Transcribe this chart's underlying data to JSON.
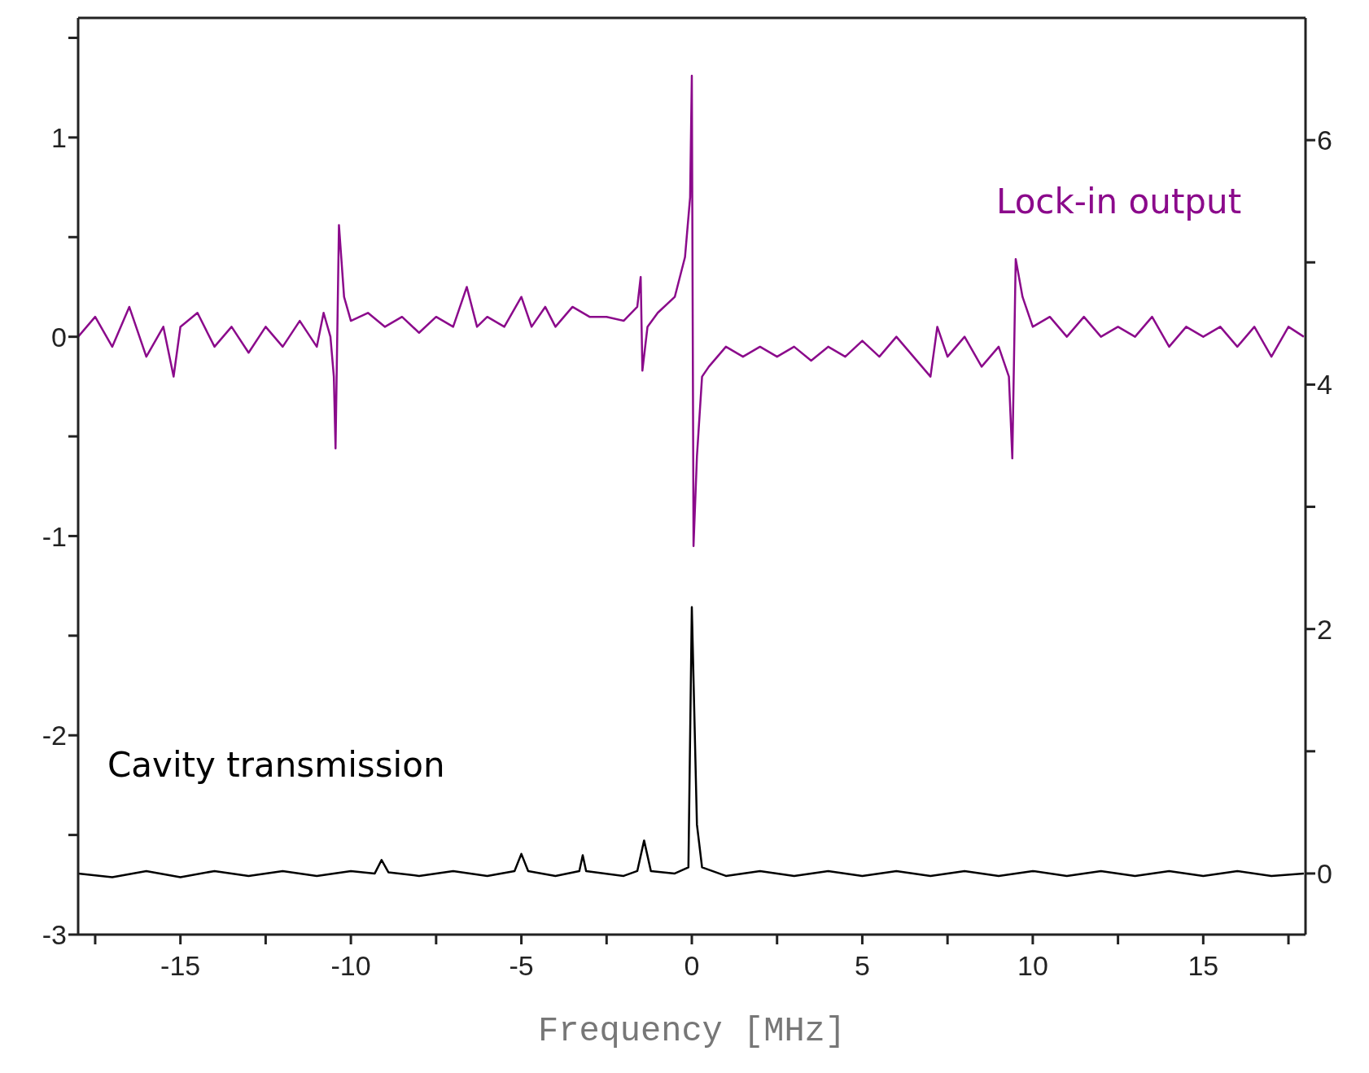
{
  "chart_data": {
    "type": "line",
    "xlabel": "Frequency [MHz]",
    "xlim": [
      -18,
      18
    ],
    "xticks": [
      {
        "value": -17.5,
        "label": null
      },
      -15,
      {
        "value": -12.5,
        "label": null
      },
      -10,
      {
        "value": -7.5,
        "label": null
      },
      -5,
      {
        "value": -2.5,
        "label": null
      },
      0,
      {
        "value": 2.5,
        "label": null
      },
      5,
      {
        "value": 7.5,
        "label": null
      },
      10,
      {
        "value": 12.5,
        "label": null
      },
      15,
      {
        "value": 17.5,
        "label": null
      }
    ],
    "ylim": [
      -3,
      1.6
    ],
    "yticks": [
      -3,
      {
        "value": -2.5,
        "label": null
      },
      -2,
      {
        "value": -1.5,
        "label": null
      },
      -1,
      {
        "value": -0.5,
        "label": null
      },
      0,
      {
        "value": 0.5,
        "label": null
      },
      1,
      {
        "value": 1.5,
        "label": null
      }
    ],
    "y2lim": [
      -0.5,
      7
    ],
    "y2ticks": [
      0,
      {
        "value": 1,
        "label": null
      },
      2,
      {
        "value": 3,
        "label": null
      },
      4,
      {
        "value": 5,
        "label": null
      },
      6
    ],
    "grid": false,
    "legend": false,
    "marker": "none",
    "line_style": "solid",
    "series": [
      {
        "name": "Lock-in output",
        "color": "#8b0a8b",
        "axis": "y",
        "x": [
          -18,
          -17.5,
          -17,
          -16.5,
          -16,
          -15.5,
          -15.2,
          -15,
          -14.5,
          -14,
          -13.5,
          -13,
          -12.5,
          -12,
          -11.5,
          -11,
          -10.8,
          -10.6,
          -10.5,
          -10.45,
          -10.35,
          -10.2,
          -10,
          -9.5,
          -9,
          -8.5,
          -8,
          -7.5,
          -7,
          -6.6,
          -6.3,
          -6,
          -5.5,
          -5,
          -4.7,
          -4.3,
          -4,
          -3.5,
          -3,
          -2.5,
          -2,
          -1.6,
          -1.5,
          -1.45,
          -1.3,
          -1,
          -0.5,
          -0.2,
          -0.05,
          0,
          0.05,
          0.15,
          0.3,
          0.5,
          1,
          1.5,
          2,
          2.5,
          3,
          3.5,
          4,
          4.5,
          5,
          5.5,
          6,
          6.5,
          7,
          7.2,
          7.5,
          8,
          8.5,
          9,
          9.3,
          9.4,
          9.5,
          9.7,
          10,
          10.5,
          11,
          11.5,
          12,
          12.5,
          13,
          13.5,
          14,
          14.5,
          15,
          15.5,
          16,
          16.5,
          17,
          17.5,
          17.95
        ],
        "values": [
          0,
          0.1,
          -0.05,
          0.15,
          -0.1,
          0.05,
          -0.2,
          0.05,
          0.12,
          -0.05,
          0.05,
          -0.08,
          0.05,
          -0.05,
          0.08,
          -0.05,
          0.12,
          0,
          -0.2,
          -0.56,
          0.56,
          0.2,
          0.08,
          0.12,
          0.05,
          0.1,
          0.02,
          0.1,
          0.05,
          0.25,
          0.05,
          0.1,
          0.05,
          0.2,
          0.05,
          0.15,
          0.05,
          0.15,
          0.1,
          0.1,
          0.08,
          0.15,
          0.3,
          -0.17,
          0.05,
          0.12,
          0.2,
          0.4,
          0.7,
          1.31,
          -1.05,
          -0.6,
          -0.2,
          -0.15,
          -0.05,
          -0.1,
          -0.05,
          -0.1,
          -0.05,
          -0.12,
          -0.05,
          -0.1,
          -0.02,
          -0.1,
          0,
          -0.1,
          -0.2,
          0.05,
          -0.1,
          0,
          -0.15,
          -0.05,
          -0.2,
          -0.61,
          0.39,
          0.2,
          0.05,
          0.1,
          0,
          0.1,
          0,
          0.05,
          0,
          0.1,
          -0.05,
          0.05,
          0,
          0.05,
          -0.05,
          0.05,
          -0.1,
          0.05,
          0
        ]
      },
      {
        "name": "Cavity transmission",
        "color": "#000000",
        "axis": "y2",
        "x": [
          -18,
          -17,
          -16,
          -15,
          -14,
          -13,
          -12,
          -11,
          -10,
          -9.3,
          -9.1,
          -8.9,
          -8,
          -7,
          -6,
          -5.2,
          -5,
          -4.8,
          -4,
          -3.3,
          -3.2,
          -3.1,
          -2,
          -1.6,
          -1.4,
          -1.2,
          -0.5,
          -0.1,
          0,
          0.15,
          0.3,
          1,
          2,
          3,
          4,
          5,
          6,
          7,
          8,
          9,
          10,
          11,
          12,
          13,
          14,
          15,
          16,
          17,
          17.95
        ],
        "values": [
          0,
          -0.03,
          0.02,
          -0.03,
          0.02,
          -0.02,
          0.02,
          -0.02,
          0.02,
          0,
          0.11,
          0.01,
          -0.02,
          0.02,
          -0.02,
          0.02,
          0.16,
          0.02,
          -0.02,
          0.02,
          0.15,
          0.02,
          -0.02,
          0.02,
          0.27,
          0.02,
          0,
          0.05,
          2.18,
          0.4,
          0.05,
          -0.02,
          0.02,
          -0.02,
          0.02,
          -0.02,
          0.02,
          -0.02,
          0.02,
          -0.02,
          0.02,
          -0.02,
          0.02,
          -0.02,
          0.02,
          -0.02,
          0.02,
          -0.02,
          0
        ]
      }
    ]
  }
}
